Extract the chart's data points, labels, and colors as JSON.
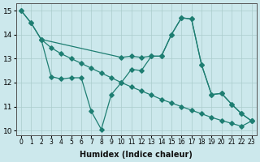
{
  "xlabel": "Humidex (Indice chaleur)",
  "bg_color": "#cce8ec",
  "grid_color": "#aacccc",
  "line_color": "#1e7e72",
  "xlim": [
    -0.5,
    23.5
  ],
  "ylim": [
    9.8,
    15.3
  ],
  "yticks": [
    10,
    11,
    12,
    13,
    14,
    15
  ],
  "xticks": [
    0,
    1,
    2,
    3,
    4,
    5,
    6,
    7,
    8,
    9,
    10,
    11,
    12,
    13,
    14,
    15,
    16,
    17,
    18,
    19,
    20,
    21,
    22,
    23
  ],
  "line1_x": [
    0,
    1,
    2,
    3,
    4,
    5,
    6,
    7,
    8,
    9,
    10,
    11,
    12,
    13,
    14,
    15,
    16,
    17,
    18,
    19,
    20,
    21,
    22,
    23
  ],
  "line1_y": [
    15.0,
    14.48,
    13.8,
    13.45,
    13.2,
    13.0,
    12.8,
    12.6,
    12.4,
    12.2,
    12.0,
    11.82,
    11.65,
    11.48,
    11.3,
    11.15,
    11.0,
    10.85,
    10.7,
    10.55,
    10.42,
    10.3,
    10.18,
    10.4
  ],
  "line2_x": [
    0,
    1,
    2,
    10,
    11,
    12,
    13,
    14,
    15,
    16,
    17,
    18,
    19,
    20,
    21,
    22,
    23
  ],
  "line2_y": [
    15.0,
    14.48,
    13.8,
    13.05,
    13.1,
    13.05,
    13.1,
    13.1,
    14.0,
    14.7,
    14.65,
    12.75,
    11.5,
    11.55,
    11.1,
    10.7,
    10.4
  ],
  "line3_x": [
    2,
    3,
    4,
    5,
    6,
    7,
    8,
    9,
    10,
    11,
    12,
    13,
    14,
    15,
    16,
    17,
    18,
    19,
    20,
    21,
    22,
    23
  ],
  "line3_y": [
    13.8,
    12.25,
    12.15,
    12.2,
    12.2,
    10.8,
    10.05,
    11.5,
    12.0,
    12.55,
    12.5,
    13.1,
    13.1,
    14.0,
    14.7,
    14.65,
    12.75,
    11.5,
    11.55,
    11.1,
    10.7,
    10.4
  ]
}
